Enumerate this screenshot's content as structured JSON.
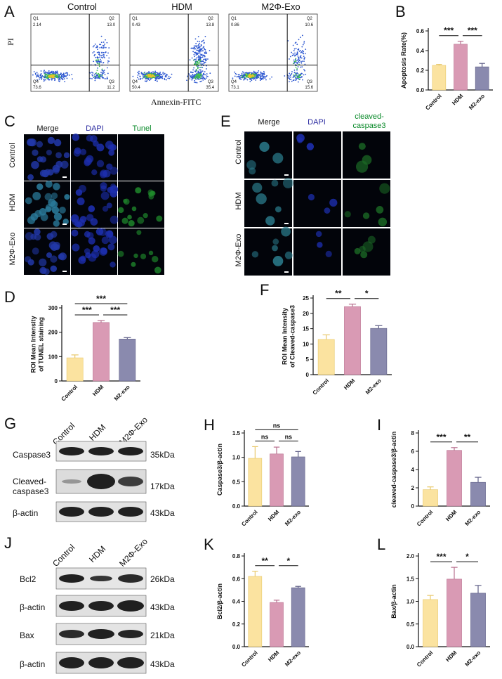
{
  "panels": {
    "A": {
      "letter": "A",
      "plots": [
        "Control",
        "HDM",
        "M2Φ-Exo"
      ],
      "ylabel": "PI",
      "xlabel": "Annexin-FITC",
      "quadrants": [
        {
          "q1": "2.14",
          "q2": "13.0",
          "q3": "11.2",
          "q4": "73.6"
        },
        {
          "q1": "0.43",
          "q2": "13.8",
          "q3": "35.4",
          "q4": "50.4"
        },
        {
          "q1": "0.86",
          "q2": "10.6",
          "q3": "15.6",
          "q4": "73.1"
        }
      ]
    },
    "B": {
      "letter": "B"
    },
    "C": {
      "letter": "C",
      "cols": [
        "Merge",
        "DAPI",
        "Tunel"
      ],
      "rows": [
        "Control",
        "HDM",
        "M2Φ-Exo"
      ]
    },
    "D": {
      "letter": "D"
    },
    "E": {
      "letter": "E",
      "cols": [
        "Merge",
        "DAPI",
        "cleaved-\ncaspase3"
      ],
      "rows": [
        "Control",
        "HDM",
        "M2Φ-Exo"
      ]
    },
    "F": {
      "letter": "F"
    },
    "G": {
      "letter": "G",
      "lanes": [
        "Control",
        "HDM",
        "M2Φ-Exo"
      ],
      "bands": [
        {
          "label": "Caspase3",
          "kda": "35kDa"
        },
        {
          "label": "Cleaved-\ncaspase3",
          "kda": "17kDa"
        },
        {
          "label": "β-actin",
          "kda": "43kDa"
        }
      ]
    },
    "H": {
      "letter": "H"
    },
    "I": {
      "letter": "I"
    },
    "J": {
      "letter": "J",
      "lanes": [
        "Control",
        "HDM",
        "M2Φ-Exo"
      ],
      "bands": [
        {
          "label": "Bcl2",
          "kda": "26kDa"
        },
        {
          "label": "β-actin",
          "kda": "43kDa"
        },
        {
          "label": "Bax",
          "kda": "21kDa"
        },
        {
          "label": "β-actin",
          "kda": "43kDa"
        }
      ]
    },
    "K": {
      "letter": "K"
    },
    "L": {
      "letter": "L"
    }
  },
  "colors": {
    "control": "#fbe3a0",
    "hdm": "#d99ab4",
    "m2": "#8a8aae",
    "control_edge": "#e8c86a",
    "hdm_edge": "#b8708f",
    "m2_edge": "#5e5e86"
  },
  "chart_data": [
    {
      "id": "B",
      "type": "bar",
      "categories": [
        "Control",
        "HDM",
        "M2-exo"
      ],
      "values": [
        0.25,
        0.465,
        0.235
      ],
      "errors": [
        0.01,
        0.03,
        0.035
      ],
      "ylabel": "Apoptosis Rate(%)",
      "ylim": [
        0,
        0.6
      ],
      "yticks": [
        "0.0",
        "0.2",
        "0.4",
        "0.6"
      ],
      "sig": [
        {
          "from": 0,
          "to": 1,
          "label": "***"
        },
        {
          "from": 1,
          "to": 2,
          "label": "***"
        }
      ]
    },
    {
      "id": "D",
      "type": "bar",
      "categories": [
        "Control",
        "HDM",
        "M2-exo"
      ],
      "values": [
        95,
        240,
        172
      ],
      "errors": [
        12,
        8,
        6
      ],
      "ylabel": "ROI Mean Intensity\nof TUNEL staining",
      "ylim": [
        0,
        300
      ],
      "yticks": [
        "0",
        "100",
        "200",
        "300"
      ],
      "sig": [
        {
          "from": 0,
          "to": 1,
          "label": "***"
        },
        {
          "from": 1,
          "to": 2,
          "label": "***"
        },
        {
          "from": 0,
          "to": 2,
          "label": "***"
        }
      ]
    },
    {
      "id": "F",
      "type": "bar",
      "categories": [
        "Control",
        "HDM",
        "M2-exo"
      ],
      "values": [
        11.5,
        22.2,
        15.1
      ],
      "errors": [
        1.5,
        0.8,
        0.9
      ],
      "ylabel": "ROI Mean Intensity\nof Cleaved-caspase3",
      "ylim": [
        0,
        25
      ],
      "yticks": [
        "0",
        "5",
        "10",
        "15",
        "20",
        "25"
      ],
      "sig": [
        {
          "from": 0,
          "to": 1,
          "label": "**"
        },
        {
          "from": 1,
          "to": 2,
          "label": "*"
        }
      ]
    },
    {
      "id": "H",
      "type": "bar",
      "categories": [
        "Control",
        "HDM",
        "M2-exo"
      ],
      "values": [
        0.98,
        1.07,
        1.01
      ],
      "errors": [
        0.24,
        0.14,
        0.11
      ],
      "ylabel": "Caspase3/β-actin",
      "ylim": [
        0,
        1.5
      ],
      "yticks": [
        "0.0",
        "0.5",
        "1.0",
        "1.5"
      ],
      "sig": [
        {
          "from": 0,
          "to": 1,
          "label": "ns"
        },
        {
          "from": 1,
          "to": 2,
          "label": "ns"
        },
        {
          "from": 0,
          "to": 2,
          "label": "ns"
        }
      ]
    },
    {
      "id": "I",
      "type": "bar",
      "categories": [
        "Control",
        "HDM",
        "M2-exo"
      ],
      "values": [
        1.8,
        6.1,
        2.6
      ],
      "errors": [
        0.3,
        0.3,
        0.55
      ],
      "ylabel": "cleaved-caspase3/β-actin",
      "ylim": [
        0,
        8
      ],
      "yticks": [
        "0",
        "2",
        "4",
        "6",
        "8"
      ],
      "sig": [
        {
          "from": 0,
          "to": 1,
          "label": "***"
        },
        {
          "from": 1,
          "to": 2,
          "label": "**"
        }
      ]
    },
    {
      "id": "K",
      "type": "bar",
      "categories": [
        "Control",
        "HDM",
        "M2-exo"
      ],
      "values": [
        0.62,
        0.39,
        0.52
      ],
      "errors": [
        0.045,
        0.02,
        0.012
      ],
      "ylabel": "Bcl2/β-actin",
      "ylim": [
        0,
        0.8
      ],
      "yticks": [
        "0.0",
        "0.2",
        "0.4",
        "0.6",
        "0.8"
      ],
      "sig": [
        {
          "from": 0,
          "to": 1,
          "label": "**"
        },
        {
          "from": 1,
          "to": 2,
          "label": "*"
        }
      ]
    },
    {
      "id": "L",
      "type": "bar",
      "categories": [
        "Control",
        "HDM",
        "M2-exo"
      ],
      "values": [
        1.04,
        1.49,
        1.18
      ],
      "errors": [
        0.09,
        0.26,
        0.17
      ],
      "ylabel": "Bax/β-actin",
      "ylim": [
        0,
        2.0
      ],
      "yticks": [
        "0.0",
        "0.5",
        "1.0",
        "1.5",
        "2.0"
      ],
      "sig": [
        {
          "from": 0,
          "to": 1,
          "label": "***"
        },
        {
          "from": 1,
          "to": 2,
          "label": "*"
        }
      ]
    }
  ]
}
